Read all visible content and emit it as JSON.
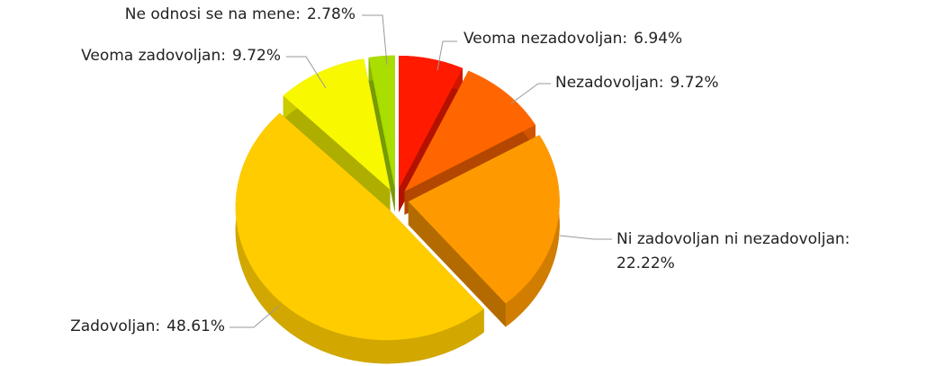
{
  "chart_data": {
    "type": "pie",
    "categories": [
      "Veoma nezadovoljan:",
      "Nezadovoljan:",
      "Ni zadovoljan ni nezadovoljan:",
      "Zadovoljan:",
      "Veoma zadovoljan:",
      "Ne odnosi se na mene:"
    ],
    "values": [
      6.94,
      9.72,
      22.22,
      48.61,
      9.72,
      2.78
    ],
    "value_labels": [
      "6.94%",
      "9.72%",
      "22.22%",
      "48.61%",
      "9.72%",
      "2.78%"
    ],
    "colors": [
      "#ff1a00",
      "#ff6600",
      "#ff9900",
      "#ffcc00",
      "#f8f800",
      "#aadd00"
    ]
  }
}
